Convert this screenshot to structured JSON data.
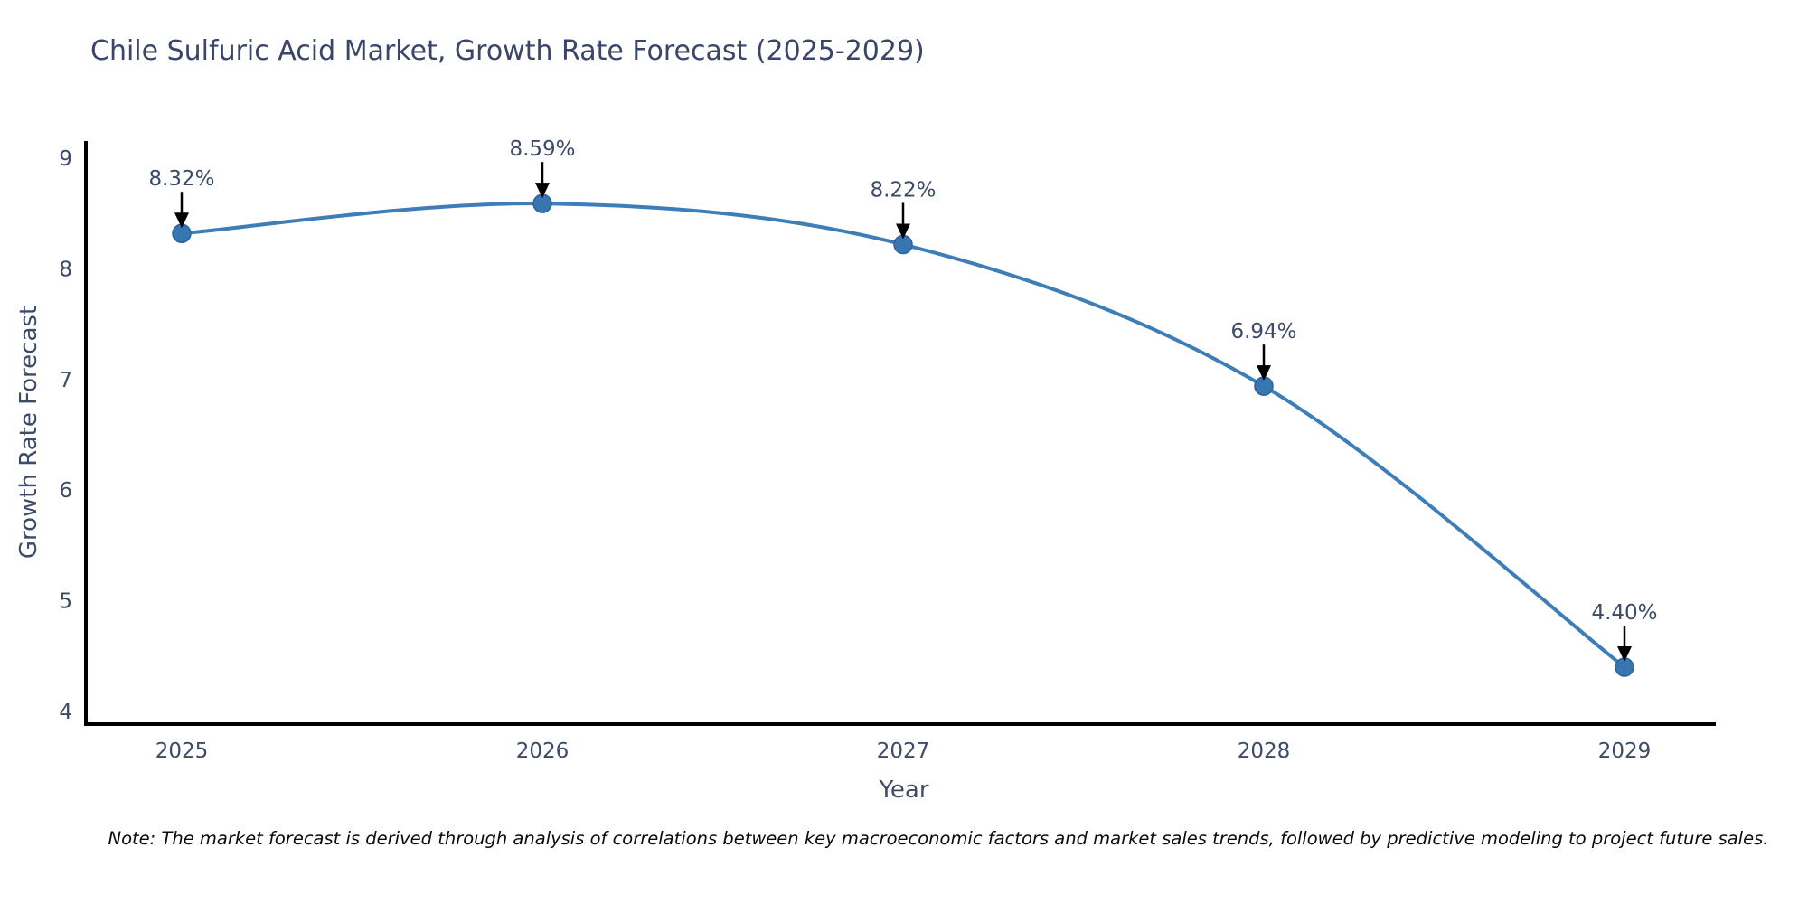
{
  "chart_data": {
    "type": "line",
    "title": "Chile Sulfuric Acid Market, Growth Rate Forecast (2025-2029)",
    "xlabel": "Year",
    "ylabel": "Growth Rate Forecast",
    "x": [
      2025,
      2026,
      2027,
      2028,
      2029
    ],
    "series": [
      {
        "name": "Growth Rate Forecast",
        "values": [
          8.32,
          8.59,
          8.22,
          6.94,
          4.4
        ]
      }
    ],
    "point_labels": [
      "8.32%",
      "8.59%",
      "8.22%",
      "6.94%",
      "4.40%"
    ],
    "yticks": [
      4,
      5,
      6,
      7,
      8,
      9
    ],
    "xticks": [
      "2025",
      "2026",
      "2027",
      "2028",
      "2029"
    ],
    "ylim": [
      3.9,
      9.2
    ],
    "grid": false,
    "legend_position": "none",
    "line_shape": "spline",
    "colors": {
      "line": "#3d7eb8",
      "marker_fill": "#3876b2",
      "marker_edge": "#2d6499",
      "axis_line": "#000000",
      "text": "#3d4a68",
      "title": "#3a4668",
      "annotation_arrow": "#000000",
      "note_text": "#0a0a0a",
      "background": "#ffffff"
    }
  },
  "note": "Note: The market forecast is derived through analysis of correlations between key macroeconomic factors and market sales trends, followed by predictive modeling to project future sales."
}
